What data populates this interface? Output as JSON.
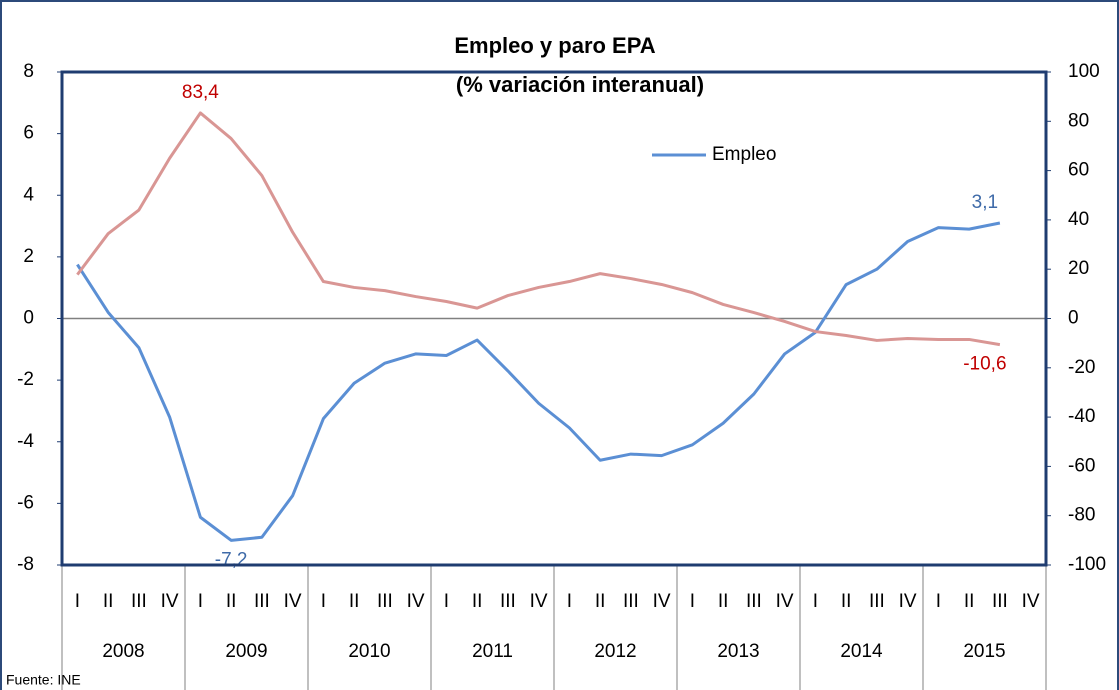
{
  "chart_data": {
    "type": "line",
    "title": "Empleo y paro EPA",
    "subtitle": "(% variación interanual)",
    "source": "Fuente: INE",
    "categories": [
      "I",
      "II",
      "III",
      "IV",
      "I",
      "II",
      "III",
      "IV",
      "I",
      "II",
      "III",
      "IV",
      "I",
      "II",
      "III",
      "IV",
      "I",
      "II",
      "III",
      "IV",
      "I",
      "II",
      "III",
      "IV",
      "I",
      "II",
      "III",
      "IV",
      "I",
      "II",
      "III",
      "IV"
    ],
    "groups": [
      "2008",
      "2009",
      "2010",
      "2011",
      "2012",
      "2013",
      "2014",
      "2015"
    ],
    "ylim": [
      -8,
      8
    ],
    "yticks": [
      -8,
      -6,
      -4,
      -2,
      0,
      2,
      4,
      6,
      8
    ],
    "y2lim": [
      -100,
      100
    ],
    "y2ticks": [
      -100,
      -80,
      -60,
      -40,
      -20,
      0,
      20,
      40,
      60,
      80,
      100
    ],
    "legend": "top-center",
    "series": [
      {
        "name": "Empleo",
        "color": "#5b8fd4",
        "label_color": "#3e6aa8",
        "in_legend": true,
        "values": [
          1.75,
          0.2,
          -0.95,
          -3.2,
          -6.45,
          -7.2,
          -7.1,
          -5.75,
          -3.25,
          -2.1,
          -1.45,
          -1.15,
          -1.2,
          -0.7,
          -1.7,
          -2.75,
          -3.55,
          -4.6,
          -4.4,
          -4.45,
          -4.1,
          -3.4,
          -2.45,
          -1.15,
          -0.45,
          1.1,
          1.6,
          2.5,
          2.95,
          2.9,
          3.1,
          null
        ],
        "value_labels": [
          null,
          null,
          null,
          null,
          null,
          "-7,2",
          null,
          null,
          null,
          null,
          null,
          null,
          null,
          null,
          null,
          null,
          null,
          null,
          null,
          null,
          null,
          null,
          null,
          null,
          null,
          null,
          null,
          null,
          null,
          null,
          "3,1",
          null
        ]
      },
      {
        "color": "#d99694",
        "label_color": "#c00000",
        "axis": "y2",
        "in_legend": false,
        "values": [
          17.8,
          34.4,
          44,
          65,
          83.4,
          73,
          58,
          35,
          15,
          12.6,
          11.3,
          8.9,
          6.9,
          4.2,
          9.3,
          12.6,
          15,
          18.2,
          16.2,
          13.8,
          10.5,
          5.7,
          2.4,
          -1.2,
          -5.3,
          -6.9,
          -8.9,
          -8.1,
          -8.5,
          -8.5,
          -10.6,
          null
        ],
        "value_labels": [
          null,
          null,
          null,
          null,
          "83,4",
          null,
          null,
          null,
          null,
          null,
          null,
          null,
          null,
          null,
          null,
          null,
          null,
          null,
          null,
          null,
          null,
          null,
          null,
          null,
          null,
          null,
          null,
          null,
          null,
          null,
          "-10,6",
          null
        ]
      }
    ]
  }
}
